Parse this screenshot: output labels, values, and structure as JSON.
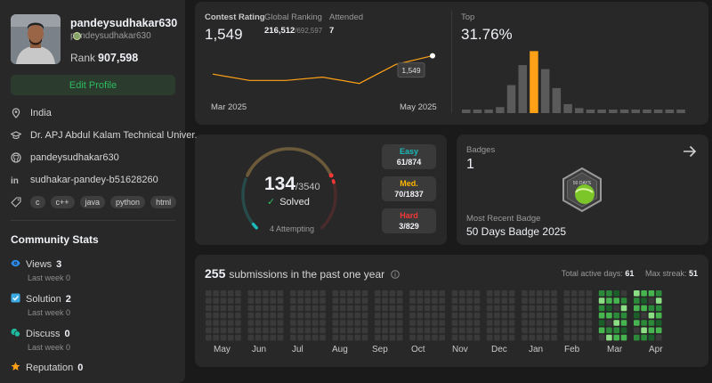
{
  "profile": {
    "username": "pandeysudhakar630",
    "handle": "pandeysudhakar630",
    "rank_label": "Rank",
    "rank_value": "907,598",
    "edit_button": "Edit Profile",
    "location": "India",
    "school": "Dr. APJ Abdul Kalam Technical Univer...",
    "github": "pandeysudhakar630",
    "linkedin": "sudhakar-pandey-b51628260",
    "skills": [
      "c",
      "c++",
      "java",
      "python",
      "html"
    ]
  },
  "community": {
    "title": "Community Stats",
    "stats": [
      {
        "label": "Views",
        "value": "3",
        "sub": "Last week 0",
        "icon": "eye-icon",
        "color": "#2a8df0"
      },
      {
        "label": "Solution",
        "value": "2",
        "sub": "Last week 0",
        "icon": "solution-icon",
        "color": "#3cabe4"
      },
      {
        "label": "Discuss",
        "value": "0",
        "sub": "Last week 0",
        "icon": "discuss-icon",
        "color": "#1fb9a0"
      },
      {
        "label": "Reputation",
        "value": "0",
        "icon": "star-icon",
        "color": "#ffa116"
      }
    ]
  },
  "contest": {
    "rating_label": "Contest Rating",
    "rating": "1,549",
    "global_label": "Global Ranking",
    "global_rank": "216,512",
    "global_total": "/692,597",
    "attended_label": "Attended",
    "attended": "7",
    "x_start": "Mar 2025",
    "x_end": "May 2025",
    "tooltip": "1,549",
    "top_label": "Top",
    "top_value": "31.76%"
  },
  "chart_data": [
    {
      "type": "line",
      "x": [
        "Mar 2025",
        "",
        "",
        "",
        "",
        "",
        "May 2025"
      ],
      "y": [
        1500,
        1483,
        1483,
        1492,
        1475,
        1526,
        1549
      ]
    },
    {
      "type": "bar",
      "values": [
        2,
        2,
        3,
        6,
        28,
        48,
        62,
        44,
        25,
        9,
        5,
        3,
        2,
        2,
        2,
        2,
        1,
        1,
        2,
        1
      ],
      "highlight_index": 6,
      "highlight_color": "#ffa116",
      "bar_color": "#5a5a5a"
    }
  ],
  "problems": {
    "solved": "134",
    "total": "/3540",
    "solved_label": "Solved",
    "attempting": "4 Attempting",
    "progress": 0.0379,
    "difficulties": [
      {
        "label": "Easy",
        "value": "61/874",
        "color": "#1cbaba"
      },
      {
        "label": "Med.",
        "value": "70/1837",
        "color": "#ffb700"
      },
      {
        "label": "Hard",
        "value": "3/829",
        "color": "#f63737"
      }
    ]
  },
  "badges": {
    "label": "Badges",
    "count": "1",
    "recent_label": "Most Recent Badge",
    "recent_name": "50 Days Badge 2025",
    "badge_text": "50 DAYS"
  },
  "submissions": {
    "count": "255",
    "text": "submissions in the past one year",
    "active_label": "Total active days:",
    "active_value": "61",
    "streak_label": "Max streak:",
    "streak_value": "51",
    "months": [
      "May",
      "Jun",
      "Jul",
      "Aug",
      "Sep",
      "Oct",
      "Nov",
      "Dec",
      "Jan",
      "Feb",
      "Mar",
      "Apr"
    ]
  }
}
